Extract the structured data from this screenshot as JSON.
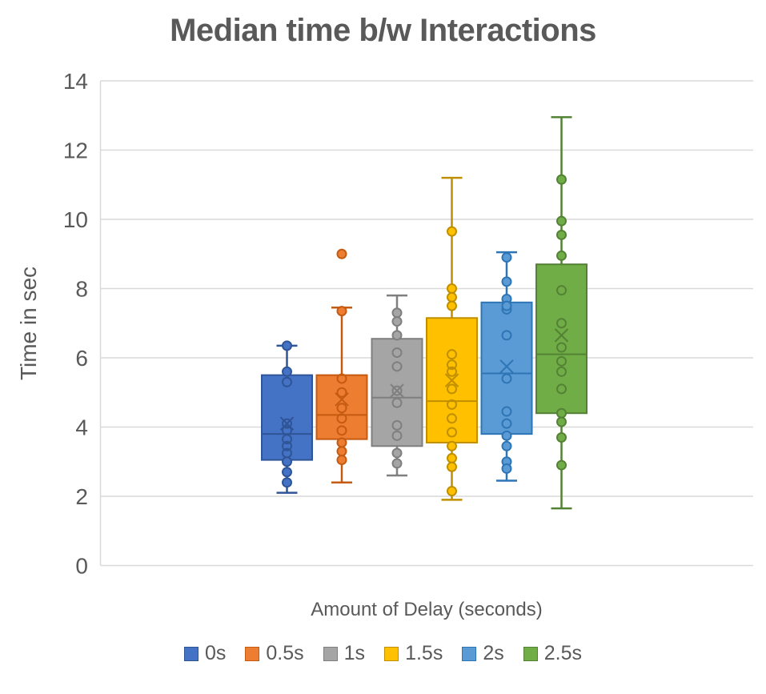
{
  "chart_data": {
    "type": "box",
    "title": "Median time b/w Interactions",
    "xlabel": "Amount of Delay (seconds)",
    "ylabel": "Time in sec",
    "ylim": [
      0,
      14
    ],
    "ytick_step": 2,
    "grid": true,
    "legend_position": "bottom",
    "colors": {
      "gridline": "#D9D9D9",
      "text": "#595959",
      "title": "#595959"
    },
    "series": [
      {
        "name": "0s",
        "fill": "#4472C4",
        "border": "#2F5597",
        "whisker_low": 2.1,
        "q1": 3.05,
        "median": 3.8,
        "q3": 5.5,
        "whisker_high": 6.35,
        "mean": 4.1,
        "points_filled": [
          6.35,
          5.6,
          3.0,
          2.7,
          2.4
        ],
        "points_open": [
          5.3,
          4.1,
          3.9,
          3.65,
          3.45,
          3.25
        ]
      },
      {
        "name": "0.5s",
        "fill": "#ED7D31",
        "border": "#C55A11",
        "whisker_low": 2.4,
        "q1": 3.65,
        "median": 4.35,
        "q3": 5.5,
        "whisker_high": 7.45,
        "mean": 4.8,
        "points_filled": [
          9.0,
          7.35,
          3.55,
          3.3,
          3.05
        ],
        "points_open": [
          5.4,
          5.0,
          4.55,
          4.25,
          3.9
        ]
      },
      {
        "name": "1s",
        "fill": "#A5A5A5",
        "border": "#7F7F7F",
        "whisker_low": 2.6,
        "q1": 3.45,
        "median": 4.85,
        "q3": 6.55,
        "whisker_high": 7.8,
        "mean": 5.05,
        "points_filled": [
          7.3,
          7.05,
          6.65,
          3.25,
          2.95
        ],
        "points_open": [
          6.15,
          5.75,
          5.05,
          4.7,
          4.05,
          3.75
        ]
      },
      {
        "name": "1.5s",
        "fill": "#FFC000",
        "border": "#BF8F00",
        "whisker_low": 1.9,
        "q1": 3.55,
        "median": 4.75,
        "q3": 7.15,
        "whisker_high": 11.2,
        "mean": 5.35,
        "points_filled": [
          9.65,
          8.0,
          7.75,
          7.5,
          3.45,
          3.1,
          2.85,
          2.15
        ],
        "points_open": [
          6.1,
          5.8,
          5.6,
          5.1,
          4.65,
          4.25,
          3.85
        ]
      },
      {
        "name": "2s",
        "fill": "#5B9BD5",
        "border": "#2E75B6",
        "whisker_low": 2.45,
        "q1": 3.8,
        "median": 5.55,
        "q3": 7.6,
        "whisker_high": 9.05,
        "mean": 5.75,
        "points_filled": [
          8.9,
          8.2,
          7.7,
          7.5,
          3.75,
          3.45,
          3.0,
          2.8
        ],
        "points_open": [
          7.4,
          6.65,
          5.4,
          4.45,
          4.1
        ]
      },
      {
        "name": "2.5s",
        "fill": "#70AD47",
        "border": "#548235",
        "whisker_low": 1.65,
        "q1": 4.4,
        "median": 6.1,
        "q3": 8.7,
        "whisker_high": 12.95,
        "mean": 6.65,
        "points_filled": [
          11.15,
          9.95,
          9.55,
          8.95,
          4.4,
          4.15,
          3.7,
          2.9
        ],
        "points_open": [
          7.95,
          7.0,
          6.3,
          5.9,
          5.6,
          5.1
        ]
      }
    ]
  }
}
